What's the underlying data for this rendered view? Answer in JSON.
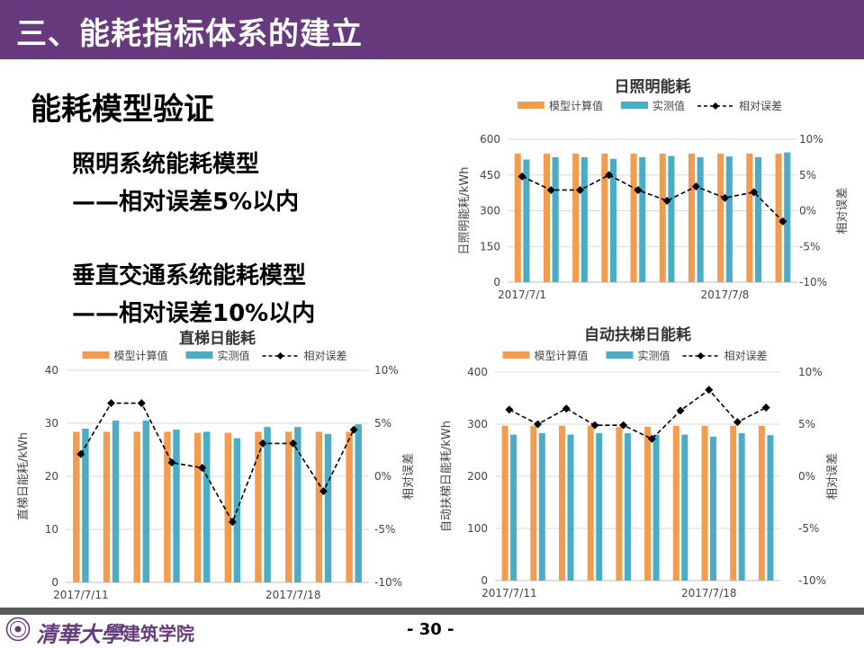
{
  "header": {
    "title": "三、能耗指标体系的建立"
  },
  "subtitle": "能耗模型验证",
  "models": [
    {
      "name": "照明系统能耗模型",
      "error": "——相对误差5%以内"
    },
    {
      "name": "垂直交通系统能耗模型",
      "error": "——相对误差10%以内"
    }
  ],
  "legend_labels": {
    "model": "模型计算值",
    "measured": "实测值",
    "error": "相对误差"
  },
  "colors": {
    "header": "#673A7E",
    "model_bar": "#F39C4E",
    "measured_bar": "#4AACC5",
    "error_line": "#000000"
  },
  "chart_data": [
    {
      "id": "lighting",
      "type": "bar",
      "title": "日照明能耗",
      "ylabel": "日照明能耗/kWh",
      "y2label": "相对误差",
      "ylim": [
        0,
        600
      ],
      "yticks": [
        0,
        150,
        300,
        450,
        600
      ],
      "y2lim": [
        -10,
        10
      ],
      "y2ticks": [
        "-10%",
        "-5%",
        "0%",
        "5%",
        "10%"
      ],
      "xtick_labels": [
        {
          "index": 0,
          "text": "2017/7/1"
        },
        {
          "index": 7,
          "text": "2017/7/8"
        }
      ],
      "series": [
        {
          "name": "模型计算值",
          "kind": "bar",
          "values": [
            540,
            540,
            540,
            540,
            540,
            540,
            540,
            540,
            540,
            540
          ]
        },
        {
          "name": "实测值",
          "kind": "bar",
          "values": [
            515,
            525,
            525,
            518,
            525,
            530,
            525,
            528,
            525,
            545
          ]
        },
        {
          "name": "相对误差",
          "kind": "line",
          "axis": "y2",
          "values": [
            4.8,
            2.9,
            2.9,
            5.0,
            2.9,
            1.4,
            3.4,
            1.8,
            2.6,
            -1.5
          ]
        }
      ]
    },
    {
      "id": "elevator",
      "type": "bar",
      "title": "直梯日能耗",
      "ylabel": "直梯日能耗/kWh",
      "y2label": "相对误差",
      "ylim": [
        0,
        40
      ],
      "yticks": [
        0,
        10,
        20,
        30,
        40
      ],
      "y2lim": [
        -10,
        10
      ],
      "y2ticks": [
        "-10%",
        "-5%",
        "0%",
        "5%",
        "10%"
      ],
      "xtick_labels": [
        {
          "index": 0,
          "text": "2017/7/11"
        },
        {
          "index": 7,
          "text": "2017/7/18"
        }
      ],
      "series": [
        {
          "name": "模型计算值",
          "kind": "bar",
          "values": [
            28.4,
            28.4,
            28.4,
            28.4,
            28.2,
            28.2,
            28.4,
            28.4,
            28.4,
            28.4
          ]
        },
        {
          "name": "实测值",
          "kind": "bar",
          "values": [
            29.0,
            30.5,
            30.5,
            28.8,
            28.4,
            27.2,
            29.3,
            29.3,
            28.0,
            29.8
          ]
        },
        {
          "name": "相对误差",
          "kind": "line",
          "axis": "y2",
          "values": [
            2.1,
            6.9,
            6.9,
            1.3,
            0.8,
            -4.3,
            3.1,
            3.1,
            -1.4,
            4.4
          ]
        }
      ]
    },
    {
      "id": "escalator",
      "type": "bar",
      "title": "自动扶梯日能耗",
      "ylabel": "自动扶梯日能耗/kWh",
      "y2label": "相对误差",
      "ylim": [
        0,
        400
      ],
      "yticks": [
        0,
        100,
        200,
        300,
        400
      ],
      "y2lim": [
        -10,
        10
      ],
      "y2ticks": [
        "-10%",
        "-5%",
        "0%",
        "5%",
        "10%"
      ],
      "xtick_labels": [
        {
          "index": 0,
          "text": "2017/7/11"
        },
        {
          "index": 7,
          "text": "2017/7/18"
        }
      ],
      "series": [
        {
          "name": "模型计算值",
          "kind": "bar",
          "values": [
            297,
            297,
            297,
            297,
            295,
            295,
            297,
            297,
            297,
            297
          ]
        },
        {
          "name": "实测值",
          "kind": "bar",
          "values": [
            280,
            283,
            280,
            283,
            283,
            280,
            280,
            276,
            283,
            279
          ]
        },
        {
          "name": "相对误差",
          "kind": "line",
          "axis": "y2",
          "values": [
            6.4,
            5.0,
            6.5,
            4.9,
            4.9,
            3.6,
            6.3,
            8.3,
            5.2,
            6.6
          ]
        }
      ]
    }
  ],
  "footer": {
    "logo_text": "清華大學",
    "school": "建筑学院",
    "page": "- 30 -"
  }
}
